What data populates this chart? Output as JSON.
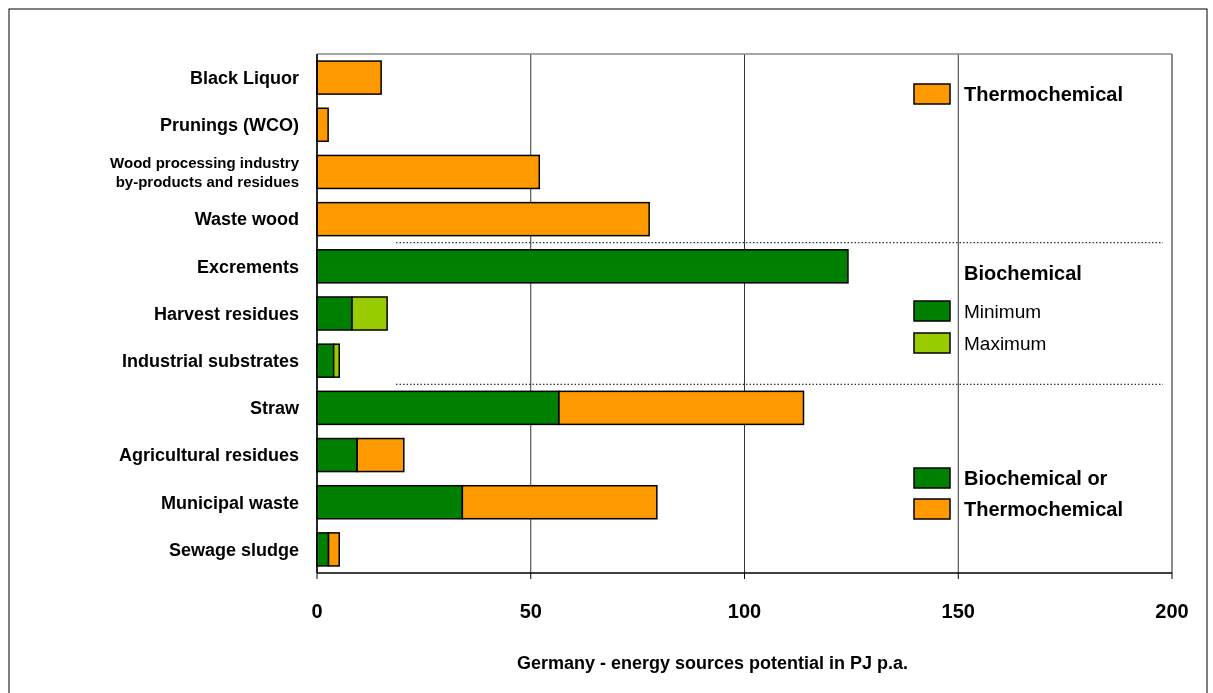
{
  "chart_data": {
    "type": "bar",
    "orientation": "horizontal",
    "stacked": true,
    "xlabel": "Germany - energy sources potential in PJ p.a.",
    "categories": [
      "Black Liquor",
      "Prunings (WCO)",
      "Wood processing industry\nby-products and residues",
      "Waste wood",
      "Excrements",
      "Harvest residues",
      "Industrial substrates",
      "Straw",
      "Agricultural residues",
      "Municipal waste",
      "Sewage sludge"
    ],
    "series": [
      {
        "name": "Thermochemical",
        "color": "#ff9900",
        "values": [
          15,
          2.6,
          52,
          77.7,
          null,
          null,
          null,
          null,
          null,
          null,
          null
        ]
      },
      {
        "name": "Minimum",
        "color": "#008000",
        "values": [
          null,
          null,
          null,
          null,
          124.2,
          8.2,
          3.9,
          null,
          null,
          null,
          null
        ]
      },
      {
        "name": "Maximum",
        "color": "#99cc00",
        "values": [
          null,
          null,
          null,
          null,
          null,
          8.2,
          1.3,
          null,
          null,
          null,
          null
        ]
      },
      {
        "name": "Biochemical or",
        "color": "#008000",
        "values": [
          null,
          null,
          null,
          null,
          null,
          null,
          null,
          56.6,
          9.4,
          34,
          2.7
        ]
      },
      {
        "name": "Thermochemical",
        "color": "#ff9900",
        "values": [
          null,
          null,
          null,
          null,
          null,
          null,
          null,
          57.2,
          10.9,
          45.5,
          2.5
        ]
      }
    ],
    "annotations": [
      "Biochemical"
    ],
    "xlim": [
      0,
      200
    ],
    "xticks": [
      0,
      50,
      100,
      150,
      200
    ],
    "grid": "x",
    "legend": "right"
  }
}
